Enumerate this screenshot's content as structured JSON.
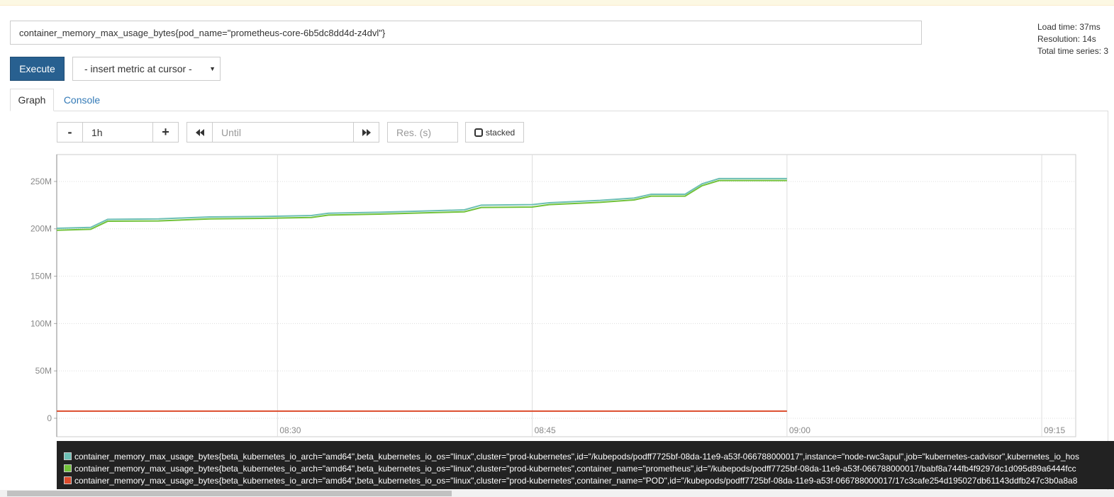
{
  "query": "container_memory_max_usage_bytes{pod_name=\"prometheus-core-6b5dc8dd4d-z4dvl\"}",
  "stats": [
    "Load time: 37ms",
    "Resolution: 14s",
    "Total time series: 3"
  ],
  "execute": "Execute",
  "insert_metric": "- insert metric at cursor -",
  "tabs": [
    "Graph",
    "Console"
  ],
  "controls": {
    "minus": "-",
    "range": "1h",
    "plus": "+",
    "until": "Until",
    "resolution": "Res. (s)",
    "stacked": "stacked"
  },
  "chart_data": {
    "type": "line",
    "x": [
      "08:17",
      "08:19",
      "08:20",
      "08:23",
      "08:26",
      "08:29",
      "08:32",
      "08:33",
      "08:36",
      "08:39",
      "08:41",
      "08:42",
      "08:45",
      "08:46",
      "08:49",
      "08:51",
      "08:52",
      "08:54",
      "08:55",
      "08:56",
      "09:00"
    ],
    "series": [
      {
        "name": "container_memory_max_usage_bytes{beta_kubernetes_io_arch=\"amd64\",beta_kubernetes_io_os=\"linux\",cluster=\"prod-kubernetes\",id=\"/kubepods/podff7725bf-08da-11e9-a53f-066788000017\",instance=\"node-rwc3apul\",job=\"kubernetes-cadvisor\",kubernetes_io_hos",
        "color": "#6cbfb4",
        "values": [
          200600000,
          201500000,
          210000000,
          210500000,
          212500000,
          213000000,
          214000000,
          216500000,
          217500000,
          219000000,
          220000000,
          225000000,
          225500000,
          227500000,
          230000000,
          232500000,
          236500000,
          236500000,
          247500000,
          253000000,
          253000000
        ]
      },
      {
        "name": "container_memory_max_usage_bytes{beta_kubernetes_io_arch=\"amd64\",beta_kubernetes_io_os=\"linux\",cluster=\"prod-kubernetes\",container_name=\"prometheus\",id=\"/kubepods/podff7725bf-08da-11e9-a53f-066788000017/babf8a744fb4f9297dc1d095d89a6444fcc",
        "color": "#72c23a",
        "values": [
          198500000,
          199500000,
          208000000,
          208300000,
          210500000,
          211000000,
          212000000,
          214500000,
          215500000,
          217000000,
          218000000,
          222500000,
          223000000,
          225500000,
          228000000,
          230500000,
          234500000,
          234500000,
          245500000,
          251000000,
          251000000
        ]
      },
      {
        "name": "container_memory_max_usage_bytes{beta_kubernetes_io_arch=\"amd64\",beta_kubernetes_io_os=\"linux\",cluster=\"prod-kubernetes\",container_name=\"POD\",id=\"/kubepods/podff7725bf-08da-11e9-a53f-066788000017/17c3cafe254d195027db61143ddfb247c3b0a8a8",
        "color": "#dd4b2c",
        "values": [
          7500000,
          7500000,
          7500000,
          7500000,
          7500000,
          7500000,
          7500000,
          7500000,
          7500000,
          7500000,
          7500000,
          7500000,
          7500000,
          7500000,
          7500000,
          7500000,
          7500000,
          7500000,
          7500000,
          7500000,
          7500000
        ]
      }
    ],
    "xlim": [
      "08:17",
      "09:17"
    ],
    "xticks": [
      "08:30",
      "08:45",
      "09:00",
      "09:15"
    ],
    "ylim": [
      -19500000,
      278400000
    ],
    "yticks": [
      0,
      {
        "value": 50000000,
        "label": "50M"
      },
      {
        "value": 100000000,
        "label": "100M"
      },
      {
        "value": 150000000,
        "label": "150M"
      },
      {
        "value": 200000000,
        "label": "200M"
      },
      {
        "value": 250000000,
        "label": "250M"
      }
    ],
    "grid": true
  }
}
